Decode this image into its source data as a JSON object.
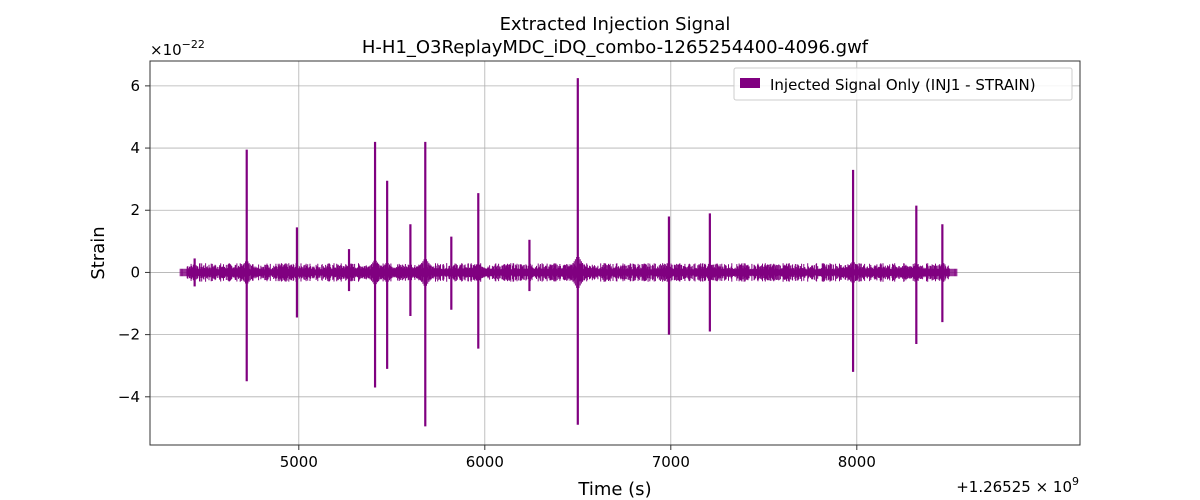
{
  "chart_data": {
    "type": "line",
    "title": "Extracted Injection Signal",
    "subtitle": "H-H1_O3ReplayMDC_iDQ_combo-1265254400-4096.gwf",
    "xlabel": "Time (s)",
    "ylabel": "Strain",
    "x_offset_label": "+1.26525 × 10",
    "x_offset_exponent": "9",
    "y_scale_label": "×10",
    "y_scale_exponent": "−22",
    "xlim": [
      4200,
      9200
    ],
    "ylim": [
      -5.55,
      6.8
    ],
    "x_ticks": [
      5000,
      6000,
      7000,
      8000
    ],
    "x_tick_labels": [
      "5000",
      "6000",
      "7000",
      "8000"
    ],
    "y_ticks": [
      -4,
      -2,
      0,
      2,
      4,
      6
    ],
    "y_tick_labels": [
      "−4",
      "−2",
      "0",
      "2",
      "4",
      "6"
    ],
    "grid": true,
    "legend_position": "top-right",
    "series": [
      {
        "name": "Injected Signal Only (INJ1 - STRAIN)",
        "color": "#800080",
        "x_range": [
          4400,
          8496
        ],
        "baseline_band": [
          -0.1,
          0.1
        ],
        "spikes": [
          {
            "t": 4440,
            "max": 0.45,
            "min": -0.45
          },
          {
            "t": 4720,
            "max": 3.95,
            "min": -3.5
          },
          {
            "t": 4990,
            "max": 1.45,
            "min": -1.45
          },
          {
            "t": 5270,
            "max": 0.75,
            "min": -0.6
          },
          {
            "t": 5410,
            "max": 4.2,
            "min": -3.7
          },
          {
            "t": 5475,
            "max": 2.95,
            "min": -3.1
          },
          {
            "t": 5600,
            "max": 1.55,
            "min": -1.4
          },
          {
            "t": 5680,
            "max": 4.2,
            "min": -4.95
          },
          {
            "t": 5820,
            "max": 1.15,
            "min": -1.2
          },
          {
            "t": 5965,
            "max": 2.55,
            "min": -2.45
          },
          {
            "t": 6240,
            "max": 1.05,
            "min": -0.6
          },
          {
            "t": 6500,
            "max": 6.25,
            "min": -4.9
          },
          {
            "t": 6990,
            "max": 1.8,
            "min": -2.0
          },
          {
            "t": 7210,
            "max": 1.9,
            "min": -1.9
          },
          {
            "t": 7980,
            "max": 3.3,
            "min": -3.2
          },
          {
            "t": 8320,
            "max": 2.15,
            "min": -2.3
          },
          {
            "t": 8460,
            "max": 1.55,
            "min": -1.6
          }
        ]
      }
    ]
  }
}
